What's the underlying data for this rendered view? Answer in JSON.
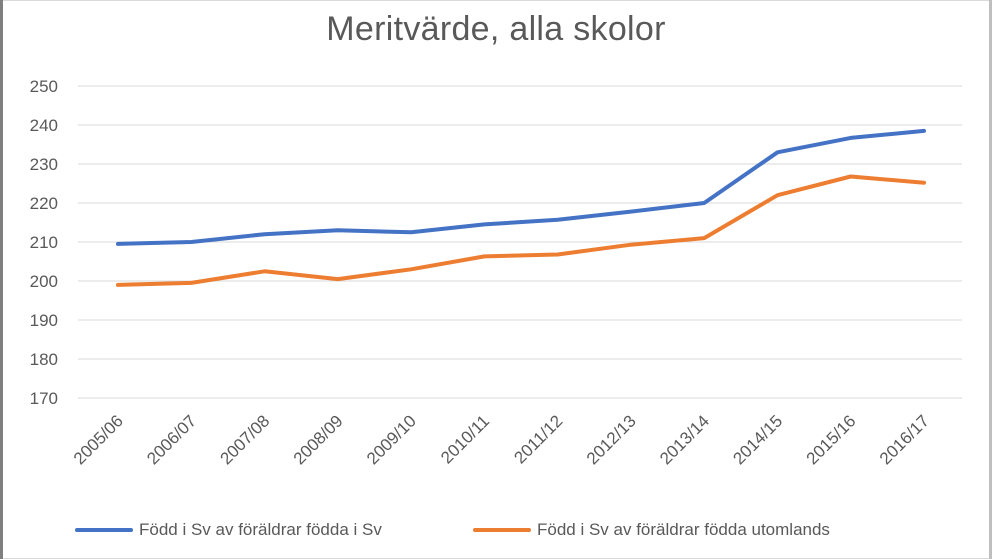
{
  "chart_data": {
    "type": "line",
    "title": "Meritvärde, alla skolor",
    "xlabel": "",
    "ylabel": "",
    "categories": [
      "2005/06",
      "2006/07",
      "2007/08",
      "2008/09",
      "2009/10",
      "2010/11",
      "2011/12",
      "2012/13",
      "2013/14",
      "2014/15",
      "2015/16",
      "2016/17"
    ],
    "ylim": [
      170,
      250
    ],
    "yticks": [
      170,
      180,
      190,
      200,
      210,
      220,
      230,
      240,
      250
    ],
    "grid": true,
    "legend_position": "bottom",
    "series": [
      {
        "name": "Född i Sv av föräldrar födda i Sv",
        "color": "#4472C4",
        "values": [
          209.5,
          210.0,
          212.0,
          213.0,
          212.5,
          214.5,
          215.7,
          217.8,
          220.0,
          233.0,
          236.7,
          238.5
        ]
      },
      {
        "name": "Född i Sv av föräldrar födda utomlands",
        "color": "#ED7D31",
        "values": [
          199.0,
          199.5,
          202.5,
          200.5,
          203.0,
          206.3,
          206.8,
          209.3,
          211.0,
          222.0,
          226.8,
          225.2
        ]
      }
    ]
  }
}
